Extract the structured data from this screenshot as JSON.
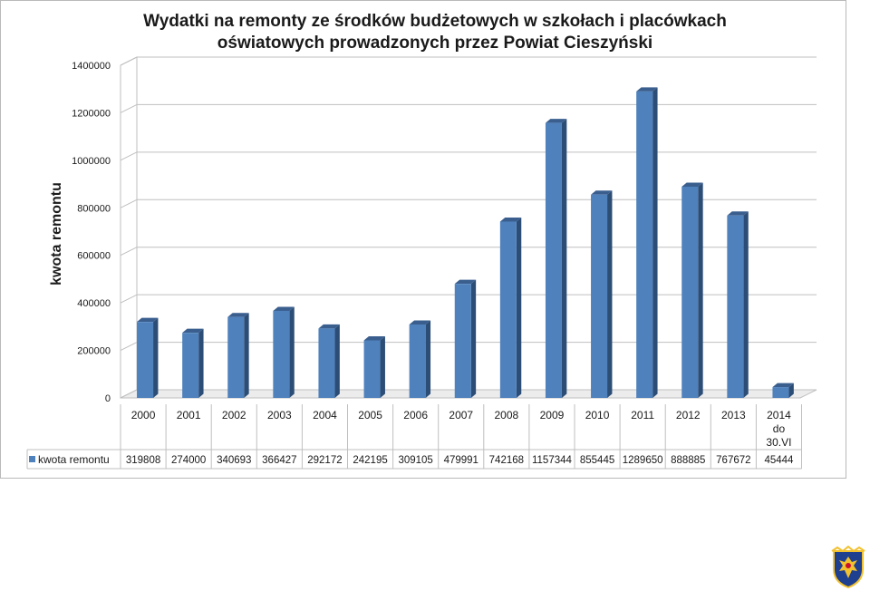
{
  "chart_data": {
    "type": "bar",
    "title": "Wydatki na remonty ze środków budżetowych w szkołach i placówkach oświatowych prowadzonych przez Powiat Cieszyński",
    "title_lines": [
      "Wydatki na remonty ze środków budżetowych w szkołach i placówkach",
      "oświatowych prowadzonych przez Powiat Cieszyński"
    ],
    "ylabel": "kwota remontu",
    "xlabel": "",
    "ylim": [
      0,
      1400000
    ],
    "yticks": [
      0,
      200000,
      400000,
      600000,
      800000,
      1000000,
      1200000,
      1400000
    ],
    "grid": true,
    "legend_position": "data table, left",
    "categories": [
      "2000",
      "2001",
      "2002",
      "2003",
      "2004",
      "2005",
      "2006",
      "2007",
      "2008",
      "2009",
      "2010",
      "2011",
      "2012",
      "2013",
      "2014 do 30.VI"
    ],
    "category_lines": [
      [
        "2000"
      ],
      [
        "2001"
      ],
      [
        "2002"
      ],
      [
        "2003"
      ],
      [
        "2004"
      ],
      [
        "2005"
      ],
      [
        "2006"
      ],
      [
        "2007"
      ],
      [
        "2008"
      ],
      [
        "2009"
      ],
      [
        "2010"
      ],
      [
        "2011"
      ],
      [
        "2012"
      ],
      [
        "2013"
      ],
      [
        "2014",
        "do",
        "30.VI"
      ]
    ],
    "series": [
      {
        "name": "kwota remontu",
        "values": [
          319808,
          274000,
          340693,
          366427,
          292172,
          242195,
          309105,
          479991,
          742168,
          1157344,
          855445,
          1289650,
          888885,
          767672,
          45444
        ],
        "labels": [
          "319808",
          "274000",
          "340693",
          "366427",
          "292172",
          "242195",
          "309105",
          "479991",
          "742168",
          "1157344",
          "855445",
          "1289650",
          "888885",
          "767672",
          "45444"
        ],
        "color": "#4f81bd",
        "side_color": "#2c4d75",
        "top_color": "#3a5f8f"
      }
    ]
  },
  "emblem": {
    "name": "coat-of-arms",
    "colors": [
      "#1f3f8f",
      "#f2c12e",
      "#c8102e"
    ]
  }
}
